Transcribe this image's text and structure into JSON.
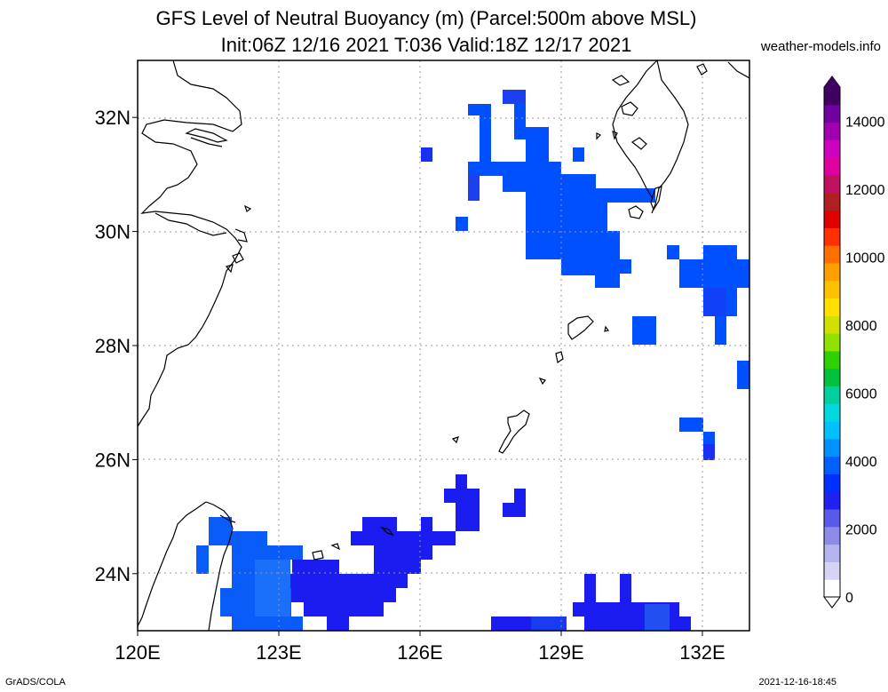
{
  "title": {
    "line1": "GFS Level of Neutral Buoyancy (m) (Parcel:500m above MSL)",
    "line2": "Init:06Z 12/16 2021 T:036 Valid:18Z 12/17 2021"
  },
  "credit": "weather-models.info",
  "footer": {
    "left": "GrADS/COLA",
    "right": "2021-12-16-18:45"
  },
  "map": {
    "lon_range": [
      120,
      133
    ],
    "lat_range": [
      23,
      33
    ],
    "lat_ticks": [
      {
        "value": 32,
        "label": "32N"
      },
      {
        "value": 30,
        "label": "30N"
      },
      {
        "value": 28,
        "label": "28N"
      },
      {
        "value": 26,
        "label": "26N"
      },
      {
        "value": 24,
        "label": "24N"
      }
    ],
    "lon_ticks": [
      {
        "value": 120,
        "label": "120E"
      },
      {
        "value": 123,
        "label": "123E"
      },
      {
        "value": 126,
        "label": "126E"
      },
      {
        "value": 129,
        "label": "129E"
      },
      {
        "value": 132,
        "label": "132E"
      }
    ]
  },
  "colorbar": {
    "range": [
      0,
      15000
    ],
    "labels": [
      "0",
      "2000",
      "4000",
      "6000",
      "8000",
      "10000",
      "12000",
      "14000"
    ],
    "colors": [
      "#ffffff",
      "#d4d4f4",
      "#b4b4ee",
      "#8c8ce8",
      "#5a5aea",
      "#2020f0",
      "#0030ff",
      "#0060ff",
      "#0090ff",
      "#00c0ff",
      "#00d8e0",
      "#00d0a0",
      "#00c040",
      "#30d000",
      "#90e000",
      "#d0e000",
      "#ffe000",
      "#ffc000",
      "#ffa000",
      "#ff7000",
      "#ff3000",
      "#e00000",
      "#b02020",
      "#c01060",
      "#e000a0",
      "#d000c0",
      "#a000b0",
      "#7000a0",
      "#400060"
    ]
  }
}
